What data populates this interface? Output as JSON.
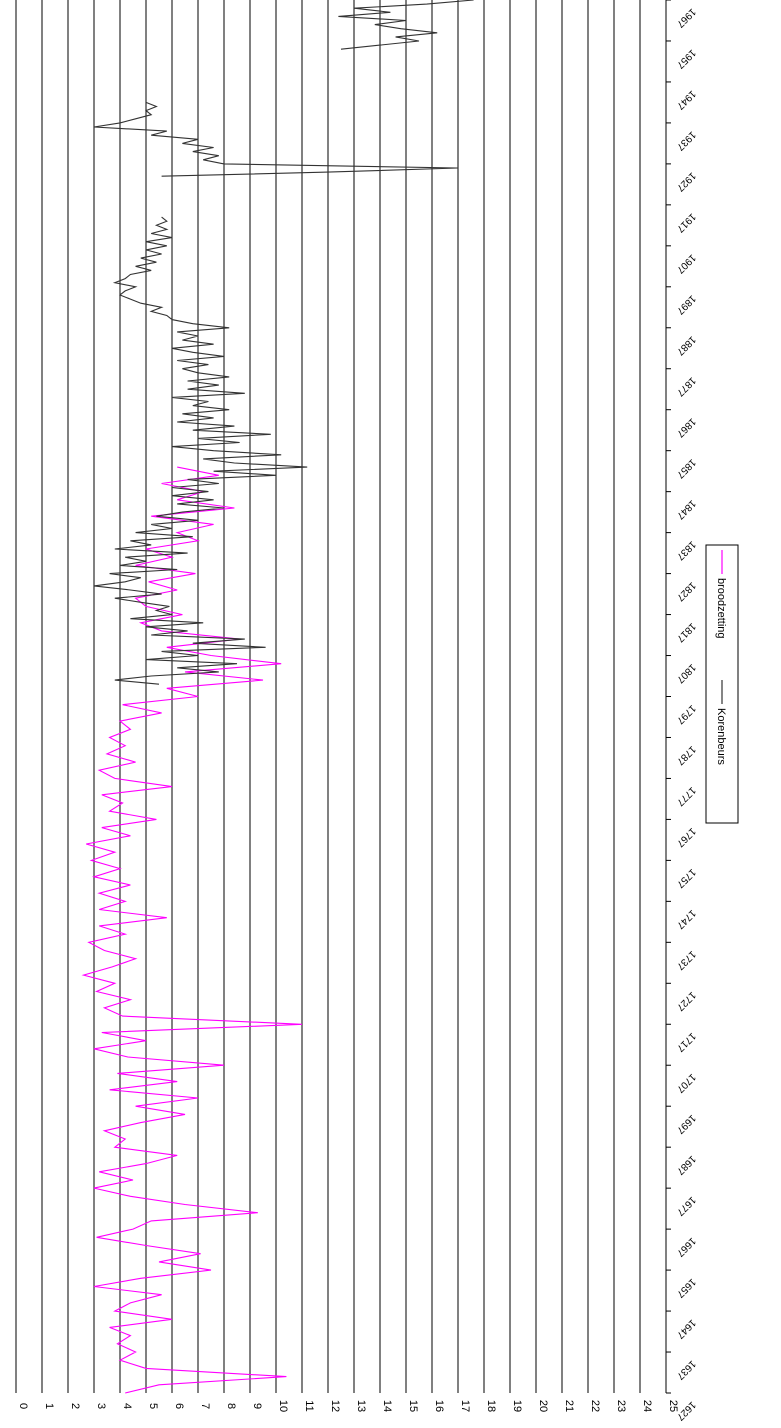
{
  "chart_data": {
    "type": "line",
    "orientation": "rotated-90-clockwise",
    "title": "",
    "xlabel": "",
    "ylabel": "",
    "ylim": [
      0,
      25
    ],
    "xlim": [
      1627,
      1967
    ],
    "grid": true,
    "legend_position": "bottom-right",
    "y_ticks": [
      25,
      24,
      23,
      22,
      21,
      20,
      19,
      18,
      17,
      16,
      15,
      14,
      13,
      12,
      11,
      10,
      9,
      8,
      7,
      6,
      5,
      4,
      3,
      2,
      1,
      0
    ],
    "x_ticks": [
      "1627",
      "1637",
      "1647",
      "1657",
      "1667",
      "1677",
      "1687",
      "1697",
      "1707",
      "1717",
      "1727",
      "1737",
      "1747",
      "1757",
      "1767",
      "1777",
      "1787",
      "1797",
      "1807",
      "1817",
      "1827",
      "1837",
      "1847",
      "1857",
      "1867",
      "1877",
      "1887",
      "1897",
      "1907",
      "1917",
      "1927",
      "1937",
      "1947",
      "1957",
      "1967"
    ],
    "series": [
      {
        "name": "broodzetting",
        "color": "#ff00ff",
        "points": [
          [
            1627,
            4.2
          ],
          [
            1629,
            5.5
          ],
          [
            1631,
            10.4
          ],
          [
            1633,
            5.0
          ],
          [
            1635,
            4.0
          ],
          [
            1637,
            4.6
          ],
          [
            1639,
            3.9
          ],
          [
            1641,
            4.4
          ],
          [
            1643,
            3.6
          ],
          [
            1645,
            6.0
          ],
          [
            1647,
            3.8
          ],
          [
            1649,
            4.4
          ],
          [
            1651,
            5.6
          ],
          [
            1653,
            3.0
          ],
          [
            1655,
            4.8
          ],
          [
            1657,
            7.5
          ],
          [
            1659,
            5.5
          ],
          [
            1661,
            7.1
          ],
          [
            1663,
            5.0
          ],
          [
            1665,
            3.1
          ],
          [
            1667,
            4.5
          ],
          [
            1669,
            5.2
          ],
          [
            1671,
            9.3
          ],
          [
            1673,
            6.5
          ],
          [
            1675,
            4.4
          ],
          [
            1677,
            3.0
          ],
          [
            1679,
            4.5
          ],
          [
            1681,
            3.2
          ],
          [
            1683,
            5.0
          ],
          [
            1685,
            6.2
          ],
          [
            1687,
            3.8
          ],
          [
            1689,
            4.2
          ],
          [
            1691,
            3.4
          ],
          [
            1693,
            4.8
          ],
          [
            1695,
            6.5
          ],
          [
            1697,
            4.6
          ],
          [
            1699,
            7.0
          ],
          [
            1701,
            3.6
          ],
          [
            1703,
            6.2
          ],
          [
            1705,
            3.9
          ],
          [
            1707,
            8.0
          ],
          [
            1709,
            4.3
          ],
          [
            1711,
            3.0
          ],
          [
            1713,
            5.0
          ],
          [
            1715,
            3.3
          ],
          [
            1717,
            11.0
          ],
          [
            1719,
            4.1
          ],
          [
            1721,
            3.4
          ],
          [
            1723,
            4.4
          ],
          [
            1725,
            3.1
          ],
          [
            1727,
            3.8
          ],
          [
            1729,
            2.6
          ],
          [
            1731,
            3.7
          ],
          [
            1733,
            4.6
          ],
          [
            1735,
            3.4
          ],
          [
            1737,
            2.8
          ],
          [
            1739,
            4.2
          ],
          [
            1741,
            3.2
          ],
          [
            1743,
            5.8
          ],
          [
            1745,
            3.2
          ],
          [
            1747,
            4.2
          ],
          [
            1749,
            3.2
          ],
          [
            1751,
            4.4
          ],
          [
            1753,
            3.0
          ],
          [
            1755,
            4.0
          ],
          [
            1757,
            2.9
          ],
          [
            1759,
            3.8
          ],
          [
            1761,
            2.7
          ],
          [
            1763,
            4.4
          ],
          [
            1765,
            3.3
          ],
          [
            1767,
            5.4
          ],
          [
            1769,
            3.6
          ],
          [
            1771,
            4.1
          ],
          [
            1773,
            3.3
          ],
          [
            1775,
            6.0
          ],
          [
            1777,
            3.8
          ],
          [
            1779,
            3.2
          ],
          [
            1781,
            4.6
          ],
          [
            1783,
            3.5
          ],
          [
            1785,
            4.2
          ],
          [
            1787,
            3.6
          ],
          [
            1789,
            4.4
          ],
          [
            1791,
            4.0
          ],
          [
            1793,
            5.6
          ],
          [
            1795,
            4.1
          ],
          [
            1797,
            7.0
          ],
          [
            1799,
            5.8
          ],
          [
            1801,
            9.5
          ],
          [
            1803,
            6.5
          ],
          [
            1805,
            10.2
          ],
          [
            1807,
            7.5
          ],
          [
            1809,
            5.8
          ],
          [
            1811,
            8.6
          ],
          [
            1813,
            5.6
          ],
          [
            1815,
            4.8
          ],
          [
            1817,
            6.4
          ],
          [
            1819,
            5.0
          ],
          [
            1821,
            4.6
          ],
          [
            1823,
            6.2
          ],
          [
            1825,
            5.1
          ],
          [
            1827,
            6.9
          ],
          [
            1829,
            4.6
          ],
          [
            1831,
            6.0
          ],
          [
            1833,
            5.0
          ],
          [
            1835,
            7.0
          ],
          [
            1837,
            6.2
          ],
          [
            1839,
            7.6
          ],
          [
            1841,
            5.2
          ],
          [
            1843,
            8.4
          ],
          [
            1845,
            6.2
          ],
          [
            1847,
            7.2
          ],
          [
            1849,
            5.6
          ],
          [
            1851,
            7.8
          ],
          [
            1853,
            6.2
          ]
        ]
      },
      {
        "name": "Korenbeurs",
        "color": "#333333",
        "points": [
          [
            1800,
            5.5
          ],
          [
            1801,
            3.8
          ],
          [
            1802,
            5.2
          ],
          [
            1803,
            7.8
          ],
          [
            1804,
            6.2
          ],
          [
            1805,
            8.5
          ],
          [
            1806,
            5.0
          ],
          [
            1807,
            7.0
          ],
          [
            1808,
            5.6
          ],
          [
            1809,
            9.6
          ],
          [
            1810,
            6.8
          ],
          [
            1811,
            8.8
          ],
          [
            1812,
            5.2
          ],
          [
            1813,
            6.6
          ],
          [
            1814,
            5.0
          ],
          [
            1815,
            7.2
          ],
          [
            1816,
            4.4
          ],
          [
            1817,
            6.0
          ],
          [
            1818,
            5.4
          ],
          [
            1819,
            5.9
          ],
          [
            1820,
            4.8
          ],
          [
            1821,
            3.8
          ],
          [
            1822,
            5.6
          ],
          [
            1823,
            4.4
          ],
          [
            1824,
            3.0
          ],
          [
            1825,
            4.2
          ],
          [
            1826,
            4.8
          ],
          [
            1827,
            3.6
          ],
          [
            1828,
            6.2
          ],
          [
            1829,
            4.0
          ],
          [
            1830,
            5.0
          ],
          [
            1831,
            4.2
          ],
          [
            1832,
            6.6
          ],
          [
            1833,
            3.8
          ],
          [
            1834,
            5.2
          ],
          [
            1835,
            4.4
          ],
          [
            1836,
            6.8
          ],
          [
            1837,
            4.6
          ],
          [
            1838,
            6.0
          ],
          [
            1839,
            5.2
          ],
          [
            1840,
            7.0
          ],
          [
            1841,
            5.4
          ],
          [
            1842,
            6.4
          ],
          [
            1843,
            8.0
          ],
          [
            1844,
            6.2
          ],
          [
            1845,
            7.6
          ],
          [
            1846,
            6.0
          ],
          [
            1847,
            7.4
          ],
          [
            1848,
            6.0
          ],
          [
            1849,
            7.8
          ],
          [
            1850,
            6.6
          ],
          [
            1851,
            10.0
          ],
          [
            1852,
            7.6
          ],
          [
            1853,
            11.2
          ],
          [
            1854,
            8.4
          ],
          [
            1855,
            7.2
          ],
          [
            1856,
            10.2
          ],
          [
            1857,
            7.6
          ],
          [
            1858,
            6.0
          ],
          [
            1859,
            8.6
          ],
          [
            1860,
            7.0
          ],
          [
            1861,
            9.8
          ],
          [
            1862,
            6.8
          ],
          [
            1863,
            8.4
          ],
          [
            1864,
            6.2
          ],
          [
            1865,
            7.6
          ],
          [
            1866,
            6.4
          ],
          [
            1867,
            8.2
          ],
          [
            1868,
            6.8
          ],
          [
            1869,
            7.4
          ],
          [
            1870,
            6.0
          ],
          [
            1871,
            8.8
          ],
          [
            1872,
            6.6
          ],
          [
            1873,
            7.8
          ],
          [
            1874,
            6.6
          ],
          [
            1875,
            8.2
          ],
          [
            1876,
            7.0
          ],
          [
            1877,
            6.4
          ],
          [
            1878,
            7.4
          ],
          [
            1879,
            6.2
          ],
          [
            1880,
            8.0
          ],
          [
            1881,
            6.8
          ],
          [
            1882,
            6.0
          ],
          [
            1883,
            7.6
          ],
          [
            1884,
            6.4
          ],
          [
            1885,
            7.0
          ],
          [
            1886,
            6.2
          ],
          [
            1887,
            8.2
          ],
          [
            1888,
            6.8
          ],
          [
            1889,
            6.0
          ],
          [
            1890,
            5.8
          ],
          [
            1891,
            5.2
          ],
          [
            1892,
            5.6
          ],
          [
            1893,
            4.8
          ],
          [
            1894,
            4.4
          ],
          [
            1895,
            4.0
          ],
          [
            1896,
            4.2
          ],
          [
            1897,
            4.6
          ],
          [
            1898,
            3.8
          ],
          [
            1899,
            4.2
          ],
          [
            1900,
            4.4
          ],
          [
            1901,
            5.2
          ],
          [
            1902,
            4.6
          ],
          [
            1903,
            5.4
          ],
          [
            1904,
            4.8
          ],
          [
            1905,
            5.6
          ],
          [
            1906,
            5.0
          ],
          [
            1907,
            5.8
          ],
          [
            1908,
            5.0
          ],
          [
            1909,
            6.0
          ],
          [
            1910,
            5.2
          ],
          [
            1911,
            5.8
          ],
          [
            1912,
            5.4
          ],
          [
            1913,
            5.8
          ],
          [
            1914,
            5.6
          ],
          [
            1924,
            5.6
          ],
          [
            1925,
            12.0
          ],
          [
            1926,
            17.0
          ],
          [
            1927,
            8.0
          ],
          [
            1928,
            7.2
          ],
          [
            1929,
            7.8
          ],
          [
            1930,
            6.8
          ],
          [
            1931,
            7.6
          ],
          [
            1932,
            6.4
          ],
          [
            1933,
            7.0
          ],
          [
            1934,
            5.2
          ],
          [
            1935,
            5.8
          ],
          [
            1936,
            3.0
          ],
          [
            1937,
            4.0
          ],
          [
            1938,
            4.6
          ],
          [
            1939,
            5.2
          ],
          [
            1940,
            5.0
          ],
          [
            1941,
            5.4
          ],
          [
            1942,
            5.0
          ],
          [
            1955,
            12.5
          ],
          [
            1956,
            14.0
          ],
          [
            1957,
            15.5
          ],
          [
            1958,
            14.6
          ],
          [
            1959,
            16.2
          ],
          [
            1960,
            14.8
          ],
          [
            1961,
            13.8
          ],
          [
            1962,
            15.0
          ],
          [
            1963,
            12.4
          ],
          [
            1964,
            14.4
          ],
          [
            1965,
            13.0
          ],
          [
            1966,
            15.8
          ],
          [
            1967,
            17.6
          ]
        ]
      }
    ]
  },
  "legend": {
    "items": [
      {
        "label": "broodzetting",
        "color": "#ff00ff"
      },
      {
        "label": "Korenbeurs",
        "color": "#333333"
      }
    ]
  }
}
